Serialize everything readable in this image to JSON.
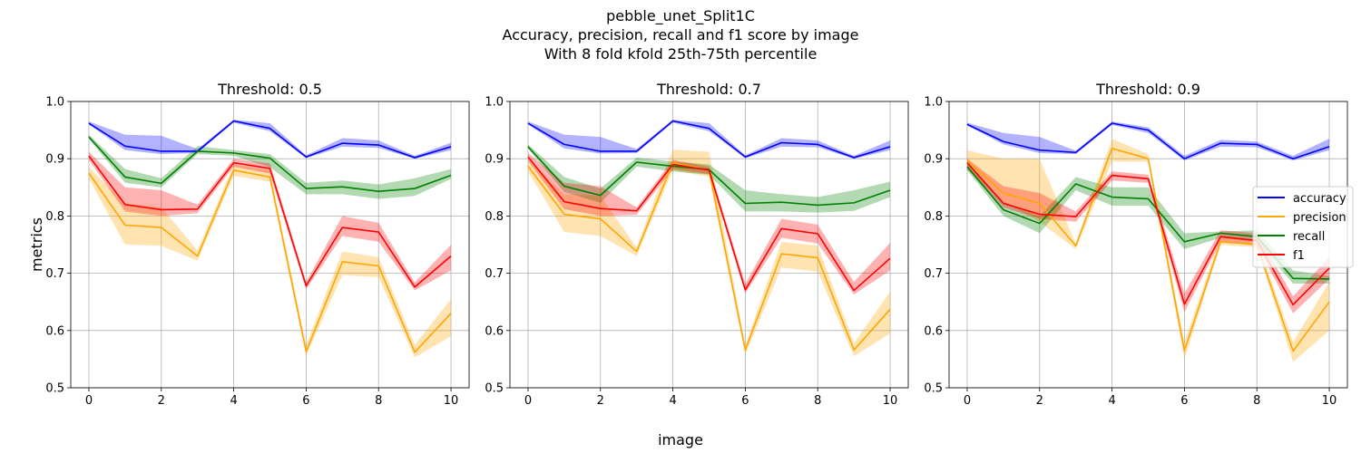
{
  "figure": {
    "title_lines": [
      "pebble_unet_Split1C",
      "Accuracy, precision, recall and f1 score by image",
      "With 8 fold kfold 25th-75th percentile"
    ],
    "xlabel": "image",
    "ylabel": "metrics"
  },
  "legend": {
    "location": "center right of last panel",
    "entries": [
      {
        "label": "accuracy",
        "color": "#0000ff"
      },
      {
        "label": "precision",
        "color": "#ffa500"
      },
      {
        "label": "recall",
        "color": "#008000"
      },
      {
        "label": "f1",
        "color": "#ff0000"
      }
    ]
  },
  "colors": {
    "accuracy": "#0000ff",
    "precision": "#ffa500",
    "recall": "#008000",
    "f1": "#ff0000"
  },
  "chart_data": [
    {
      "type": "line",
      "title": "Threshold: 0.5",
      "xlim": [
        -0.5,
        10.5
      ],
      "ylim": [
        0.5,
        1.0
      ],
      "xticks": [
        0,
        2,
        4,
        6,
        8,
        10
      ],
      "yticks": [
        0.5,
        0.6,
        0.7,
        0.8,
        0.9,
        1.0
      ],
      "ytick_labels": [
        "0.5",
        "0.6",
        "0.7",
        "0.8",
        "0.9",
        "1.0"
      ],
      "grid": true,
      "x": [
        0,
        1,
        2,
        3,
        4,
        5,
        6,
        7,
        8,
        9,
        10
      ],
      "series": [
        {
          "key": "accuracy",
          "name": "accuracy",
          "values": [
            0.962,
            0.922,
            0.913,
            0.913,
            0.966,
            0.953,
            0.903,
            0.927,
            0.924,
            0.902,
            0.921
          ],
          "lower": [
            0.96,
            0.915,
            0.908,
            0.91,
            0.963,
            0.948,
            0.901,
            0.921,
            0.919,
            0.9,
            0.915
          ],
          "upper": [
            0.965,
            0.942,
            0.94,
            0.917,
            0.968,
            0.962,
            0.906,
            0.936,
            0.932,
            0.905,
            0.928
          ]
        },
        {
          "key": "precision",
          "name": "precision",
          "values": [
            0.875,
            0.784,
            0.78,
            0.73,
            0.88,
            0.868,
            0.563,
            0.72,
            0.713,
            0.562,
            0.63
          ],
          "lower": [
            0.865,
            0.75,
            0.748,
            0.722,
            0.87,
            0.86,
            0.556,
            0.697,
            0.693,
            0.553,
            0.59
          ],
          "upper": [
            0.885,
            0.822,
            0.815,
            0.74,
            0.89,
            0.88,
            0.575,
            0.738,
            0.728,
            0.575,
            0.655
          ]
        },
        {
          "key": "recall",
          "name": "recall",
          "values": [
            0.938,
            0.868,
            0.857,
            0.913,
            0.91,
            0.901,
            0.848,
            0.851,
            0.843,
            0.848,
            0.871
          ],
          "lower": [
            0.935,
            0.858,
            0.85,
            0.908,
            0.905,
            0.885,
            0.838,
            0.838,
            0.83,
            0.835,
            0.865
          ],
          "upper": [
            0.942,
            0.882,
            0.866,
            0.922,
            0.915,
            0.908,
            0.858,
            0.862,
            0.855,
            0.866,
            0.882
          ]
        },
        {
          "key": "f1",
          "name": "f1",
          "values": [
            0.905,
            0.82,
            0.811,
            0.812,
            0.893,
            0.883,
            0.678,
            0.78,
            0.772,
            0.676,
            0.73
          ],
          "lower": [
            0.898,
            0.808,
            0.8,
            0.805,
            0.886,
            0.874,
            0.672,
            0.765,
            0.755,
            0.67,
            0.705
          ],
          "upper": [
            0.912,
            0.85,
            0.845,
            0.82,
            0.9,
            0.892,
            0.685,
            0.8,
            0.788,
            0.684,
            0.75
          ]
        }
      ]
    },
    {
      "type": "line",
      "title": "Threshold: 0.7",
      "xlim": [
        -0.5,
        10.5
      ],
      "ylim": [
        0.5,
        1.0
      ],
      "xticks": [
        0,
        2,
        4,
        6,
        8,
        10
      ],
      "yticks": [
        0.5,
        0.6,
        0.7,
        0.8,
        0.9,
        1.0
      ],
      "ytick_labels": [
        "0.5",
        "0.6",
        "0.7",
        "0.8",
        "0.9",
        "1.0"
      ],
      "grid": true,
      "x": [
        0,
        1,
        2,
        3,
        4,
        5,
        6,
        7,
        8,
        9,
        10
      ],
      "series": [
        {
          "key": "accuracy",
          "name": "accuracy",
          "values": [
            0.962,
            0.925,
            0.913,
            0.913,
            0.966,
            0.953,
            0.903,
            0.928,
            0.925,
            0.902,
            0.921
          ],
          "lower": [
            0.96,
            0.918,
            0.909,
            0.91,
            0.963,
            0.948,
            0.901,
            0.921,
            0.92,
            0.9,
            0.915
          ],
          "upper": [
            0.965,
            0.942,
            0.938,
            0.917,
            0.968,
            0.962,
            0.906,
            0.936,
            0.932,
            0.905,
            0.932
          ]
        },
        {
          "key": "precision",
          "name": "precision",
          "values": [
            0.887,
            0.803,
            0.795,
            0.738,
            0.893,
            0.88,
            0.566,
            0.734,
            0.727,
            0.566,
            0.637
          ],
          "lower": [
            0.878,
            0.772,
            0.765,
            0.73,
            0.88,
            0.868,
            0.558,
            0.71,
            0.703,
            0.555,
            0.595
          ],
          "upper": [
            0.898,
            0.838,
            0.835,
            0.745,
            0.916,
            0.912,
            0.575,
            0.755,
            0.748,
            0.578,
            0.668
          ]
        },
        {
          "key": "recall",
          "name": "recall",
          "values": [
            0.921,
            0.852,
            0.836,
            0.894,
            0.887,
            0.881,
            0.822,
            0.824,
            0.819,
            0.823,
            0.845
          ],
          "lower": [
            0.918,
            0.842,
            0.823,
            0.886,
            0.878,
            0.872,
            0.808,
            0.808,
            0.806,
            0.809,
            0.833
          ],
          "upper": [
            0.925,
            0.868,
            0.848,
            0.902,
            0.895,
            0.89,
            0.845,
            0.838,
            0.833,
            0.845,
            0.86
          ]
        },
        {
          "key": "f1",
          "name": "f1",
          "values": [
            0.903,
            0.825,
            0.813,
            0.809,
            0.89,
            0.88,
            0.671,
            0.778,
            0.769,
            0.67,
            0.726
          ],
          "lower": [
            0.896,
            0.812,
            0.8,
            0.802,
            0.882,
            0.873,
            0.665,
            0.762,
            0.752,
            0.663,
            0.705
          ],
          "upper": [
            0.91,
            0.858,
            0.852,
            0.815,
            0.898,
            0.886,
            0.682,
            0.795,
            0.785,
            0.685,
            0.753
          ]
        }
      ]
    },
    {
      "type": "line",
      "title": "Threshold: 0.9",
      "xlim": [
        -0.5,
        10.5
      ],
      "ylim": [
        0.5,
        1.0
      ],
      "xticks": [
        0,
        2,
        4,
        6,
        8,
        10
      ],
      "yticks": [
        0.5,
        0.6,
        0.7,
        0.8,
        0.9,
        1.0
      ],
      "ytick_labels": [
        "0.5",
        "0.6",
        "0.7",
        "0.8",
        "0.9",
        "1.0"
      ],
      "grid": true,
      "x": [
        0,
        1,
        2,
        3,
        4,
        5,
        6,
        7,
        8,
        9,
        10
      ],
      "series": [
        {
          "key": "accuracy",
          "name": "accuracy",
          "values": [
            0.96,
            0.93,
            0.915,
            0.911,
            0.962,
            0.95,
            0.9,
            0.927,
            0.925,
            0.9,
            0.921
          ],
          "lower": [
            0.958,
            0.925,
            0.91,
            0.908,
            0.959,
            0.945,
            0.897,
            0.921,
            0.92,
            0.897,
            0.915
          ],
          "upper": [
            0.963,
            0.945,
            0.938,
            0.914,
            0.965,
            0.955,
            0.905,
            0.933,
            0.93,
            0.905,
            0.935
          ]
        },
        {
          "key": "precision",
          "name": "precision",
          "values": [
            0.897,
            0.84,
            0.822,
            0.748,
            0.918,
            0.9,
            0.565,
            0.755,
            0.75,
            0.564,
            0.65
          ],
          "lower": [
            0.88,
            0.825,
            0.79,
            0.742,
            0.895,
            0.895,
            0.55,
            0.75,
            0.745,
            0.545,
            0.6
          ],
          "upper": [
            0.915,
            0.9,
            0.9,
            0.752,
            0.935,
            0.908,
            0.58,
            0.765,
            0.758,
            0.58,
            0.685
          ]
        },
        {
          "key": "recall",
          "name": "recall",
          "values": [
            0.886,
            0.811,
            0.787,
            0.856,
            0.833,
            0.83,
            0.755,
            0.77,
            0.764,
            0.691,
            0.69
          ],
          "lower": [
            0.88,
            0.8,
            0.77,
            0.845,
            0.818,
            0.818,
            0.742,
            0.762,
            0.755,
            0.682,
            0.682
          ],
          "upper": [
            0.895,
            0.825,
            0.8,
            0.868,
            0.85,
            0.85,
            0.77,
            0.773,
            0.775,
            0.705,
            0.695
          ]
        },
        {
          "key": "f1",
          "name": "f1",
          "values": [
            0.893,
            0.822,
            0.803,
            0.799,
            0.871,
            0.865,
            0.646,
            0.764,
            0.757,
            0.645,
            0.709
          ],
          "lower": [
            0.886,
            0.815,
            0.795,
            0.79,
            0.862,
            0.858,
            0.632,
            0.756,
            0.748,
            0.63,
            0.69
          ],
          "upper": [
            0.9,
            0.852,
            0.84,
            0.808,
            0.878,
            0.872,
            0.665,
            0.775,
            0.77,
            0.66,
            0.728
          ]
        }
      ]
    }
  ]
}
